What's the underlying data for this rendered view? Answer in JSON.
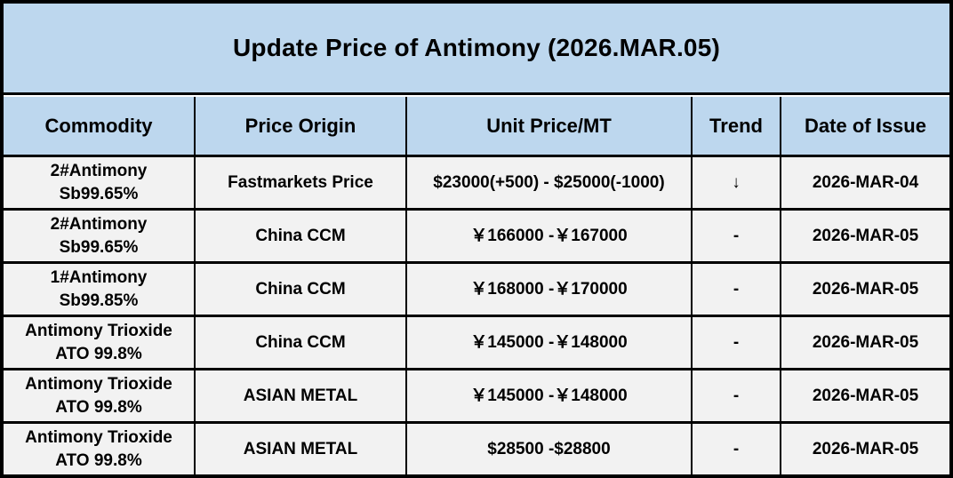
{
  "title": "Update Price of Antimony (2026.MAR.05)",
  "colors": {
    "header_bg": "#BDD7EE",
    "row_bg": "#F2F2F2",
    "border": "#000000",
    "text": "#000000"
  },
  "table": {
    "columns": [
      "Commodity",
      "Price Origin",
      "Unit Price/MT",
      "Trend",
      "Date of Issue"
    ],
    "rows": [
      {
        "commodity": "2#Antimony  Sb99.65%",
        "origin": "Fastmarkets Price",
        "price": "$23000(+500) - $25000(-1000)",
        "trend": "↓",
        "date": "2026-MAR-04"
      },
      {
        "commodity": "2#Antimony  Sb99.65%",
        "origin": "China CCM",
        "price": "￥166000 -￥167000",
        "trend": "-",
        "date": "2026-MAR-05"
      },
      {
        "commodity": "1#Antimony  Sb99.85%",
        "origin": "China CCM",
        "price": "￥168000 -￥170000",
        "trend": "-",
        "date": "2026-MAR-05"
      },
      {
        "commodity": "Antimony Trioxide\nATO 99.8%",
        "origin": "China CCM",
        "price": "￥145000 -￥148000",
        "trend": "-",
        "date": "2026-MAR-05"
      },
      {
        "commodity": "Antimony Trioxide\nATO 99.8%",
        "origin": "ASIAN METAL",
        "price": "￥145000 -￥148000",
        "trend": "-",
        "date": "2026-MAR-05"
      },
      {
        "commodity": "Antimony Trioxide\nATO 99.8%",
        "origin": "ASIAN METAL",
        "price": "$28500 -$28800",
        "trend": "-",
        "date": "2026-MAR-05"
      }
    ]
  }
}
